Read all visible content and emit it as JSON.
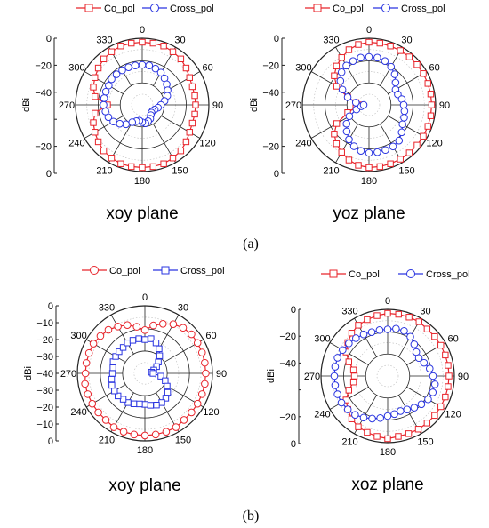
{
  "figure": {
    "caption_a": "(a)",
    "caption_b": "(b)",
    "angle_labels": [
      "0",
      "30",
      "60",
      "90",
      "120",
      "150",
      "180",
      "210",
      "240",
      "270",
      "300",
      "330"
    ],
    "radial_unit": "dBi",
    "radial_ticks_upper": [
      "0",
      "−20",
      "−40"
    ],
    "radial_ticks_lower": [
      "−20",
      "0"
    ],
    "radial_ticks_fine": [
      "0",
      "−10",
      "−20",
      "−30",
      "−40",
      "−30",
      "−20",
      "−10",
      "0"
    ],
    "colors": {
      "co": "#e8242b",
      "cross": "#2a35e0"
    }
  },
  "chart_data": [
    {
      "type": "polar",
      "title": "xoy plane",
      "rlim": [
        -50,
        0
      ],
      "series": [
        {
          "name": "Co_pol",
          "marker": "square",
          "color": "#e8242b",
          "theta": [
            0,
            10,
            20,
            30,
            40,
            50,
            60,
            70,
            80,
            90,
            100,
            110,
            120,
            130,
            140,
            150,
            160,
            170,
            180,
            190,
            200,
            210,
            220,
            230,
            240,
            250,
            260,
            270,
            280,
            290,
            300,
            310,
            320,
            330,
            340,
            350
          ],
          "r": [
            -3,
            -3,
            -3,
            -4,
            -5,
            -7,
            -9,
            -10,
            -10,
            -10,
            -10,
            -10,
            -9,
            -7,
            -5,
            -4,
            -3,
            -3,
            -3,
            -3,
            -3,
            -4,
            -5,
            -7,
            -9,
            -11,
            -14,
            -24,
            -14,
            -11,
            -9,
            -7,
            -5,
            -4,
            -3,
            -3
          ]
        },
        {
          "name": "Cross_pol",
          "marker": "circle",
          "color": "#2a35e0",
          "theta": [
            0,
            10,
            20,
            30,
            40,
            50,
            60,
            70,
            80,
            90,
            100,
            110,
            120,
            130,
            140,
            150,
            160,
            170,
            180,
            190,
            200,
            210,
            220,
            230,
            240,
            250,
            260,
            270,
            280,
            290,
            300,
            310,
            320,
            330,
            340,
            350
          ],
          "r": [
            -20,
            -20,
            -21,
            -22,
            -24,
            -26,
            -28,
            -30,
            -33,
            -36,
            -38,
            -40,
            -41,
            -41,
            -40,
            -38,
            -37,
            -36,
            -37,
            -38,
            -37,
            -35,
            -31,
            -28,
            -25,
            -23,
            -22,
            -21,
            -21,
            -21,
            -21,
            -20,
            -20,
            -20,
            -20,
            -20
          ]
        }
      ]
    },
    {
      "type": "polar",
      "title": "yoz plane",
      "rlim": [
        -50,
        0
      ],
      "series": [
        {
          "name": "Co_pol",
          "marker": "square",
          "color": "#e8242b",
          "theta": [
            0,
            10,
            20,
            30,
            40,
            50,
            60,
            70,
            80,
            90,
            100,
            110,
            120,
            130,
            140,
            150,
            160,
            170,
            180,
            190,
            200,
            210,
            220,
            230,
            240,
            250,
            260,
            270,
            280,
            290,
            300,
            310,
            320,
            330,
            340,
            350
          ],
          "r": [
            -3,
            -3,
            -3,
            -3,
            -3,
            -3,
            -3,
            -3,
            -3,
            -3,
            -3,
            -3,
            -3,
            -3,
            -3,
            -3,
            -3,
            -3,
            -3,
            -4,
            -6,
            -9,
            -12,
            -16,
            -22,
            -33,
            -40,
            -45,
            -40,
            -33,
            -22,
            -16,
            -12,
            -9,
            -6,
            -4
          ]
        },
        {
          "name": "Cross_pol",
          "marker": "circle",
          "color": "#2a35e0",
          "theta": [
            0,
            10,
            20,
            30,
            40,
            50,
            60,
            70,
            80,
            90,
            100,
            110,
            120,
            130,
            140,
            150,
            160,
            170,
            180,
            190,
            200,
            210,
            220,
            230,
            240,
            250,
            260,
            270,
            280,
            290,
            300,
            310,
            320,
            330,
            340,
            350
          ],
          "r": [
            -14,
            -14,
            -15,
            -17,
            -20,
            -24,
            -27,
            -27,
            -25,
            -24,
            -23,
            -22,
            -21,
            -18,
            -15,
            -14,
            -14,
            -14,
            -14,
            -15,
            -17,
            -20,
            -24,
            -28,
            -33,
            -40,
            -44,
            -46,
            -40,
            -33,
            -27,
            -22,
            -18,
            -16,
            -15,
            -14
          ]
        }
      ]
    },
    {
      "type": "polar",
      "title": "xoy plane",
      "rlim": [
        -50,
        0
      ],
      "series": [
        {
          "name": "Co_pol",
          "marker": "circle",
          "color": "#e8242b",
          "theta": [
            0,
            10,
            20,
            30,
            40,
            50,
            60,
            70,
            80,
            90,
            100,
            110,
            120,
            130,
            140,
            150,
            160,
            170,
            180,
            190,
            200,
            210,
            220,
            230,
            240,
            250,
            260,
            270,
            280,
            290,
            300,
            310,
            320,
            330,
            340,
            350
          ],
          "r": [
            -18,
            -14,
            -11,
            -8,
            -6,
            -5,
            -5,
            -5,
            -5,
            -5,
            -5,
            -5,
            -5,
            -5,
            -5,
            -4,
            -4,
            -4,
            -4,
            -4,
            -4,
            -4,
            -5,
            -5,
            -5,
            -5,
            -5,
            -6,
            -6,
            -6,
            -6,
            -7,
            -8,
            -10,
            -12,
            -15
          ]
        },
        {
          "name": "Cross_pol",
          "marker": "square",
          "color": "#2a35e0",
          "theta": [
            0,
            10,
            20,
            30,
            40,
            50,
            60,
            70,
            80,
            90,
            100,
            110,
            120,
            130,
            140,
            150,
            160,
            170,
            180,
            190,
            200,
            210,
            220,
            230,
            240,
            250,
            260,
            270,
            280,
            290,
            300,
            310,
            320,
            330,
            340,
            350
          ],
          "r": [
            -25,
            -24,
            -26,
            -29,
            -33,
            -37,
            -40,
            -43,
            -45,
            -44,
            -38,
            -34,
            -31,
            -28,
            -26,
            -25,
            -25,
            -26,
            -27,
            -27,
            -26,
            -25,
            -25,
            -24,
            -24,
            -24,
            -25,
            -26,
            -26,
            -25,
            -25,
            -25,
            -25,
            -24,
            -24,
            -24
          ]
        }
      ]
    },
    {
      "type": "polar",
      "title": "xoz plane",
      "rlim": [
        -50,
        0
      ],
      "series": [
        {
          "name": "Co_pol",
          "marker": "square",
          "color": "#e8242b",
          "theta": [
            0,
            10,
            20,
            30,
            40,
            50,
            60,
            70,
            80,
            90,
            100,
            110,
            120,
            130,
            140,
            150,
            160,
            170,
            180,
            190,
            200,
            210,
            220,
            230,
            240,
            250,
            260,
            270,
            280,
            290,
            300,
            310,
            320,
            330,
            340,
            350
          ],
          "r": [
            -3,
            -3,
            -3,
            -3,
            -4,
            -4,
            -4,
            -4,
            -4,
            -4,
            -4,
            -4,
            -4,
            -4,
            -4,
            -4,
            -4,
            -4,
            -3,
            -4,
            -5,
            -6,
            -8,
            -11,
            -14,
            -19,
            -24,
            -25,
            -24,
            -19,
            -14,
            -11,
            -8,
            -6,
            -5,
            -4
          ]
        },
        {
          "name": "Cross_pol",
          "marker": "circle",
          "color": "#2a35e0",
          "theta": [
            0,
            10,
            20,
            30,
            40,
            50,
            60,
            70,
            80,
            90,
            100,
            110,
            120,
            130,
            140,
            150,
            160,
            170,
            180,
            190,
            200,
            210,
            220,
            230,
            240,
            250,
            260,
            270,
            280,
            290,
            300,
            310,
            320,
            330,
            340,
            350
          ],
          "r": [
            -15,
            -14,
            -14,
            -16,
            -19,
            -22,
            -23,
            -21,
            -18,
            -16,
            -14,
            -14,
            -15,
            -17,
            -19,
            -21,
            -22,
            -21,
            -20,
            -18,
            -16,
            -14,
            -12,
            -11,
            -10,
            -10,
            -10,
            -10,
            -10,
            -10,
            -11,
            -12,
            -13,
            -14,
            -15,
            -15
          ]
        }
      ]
    }
  ]
}
